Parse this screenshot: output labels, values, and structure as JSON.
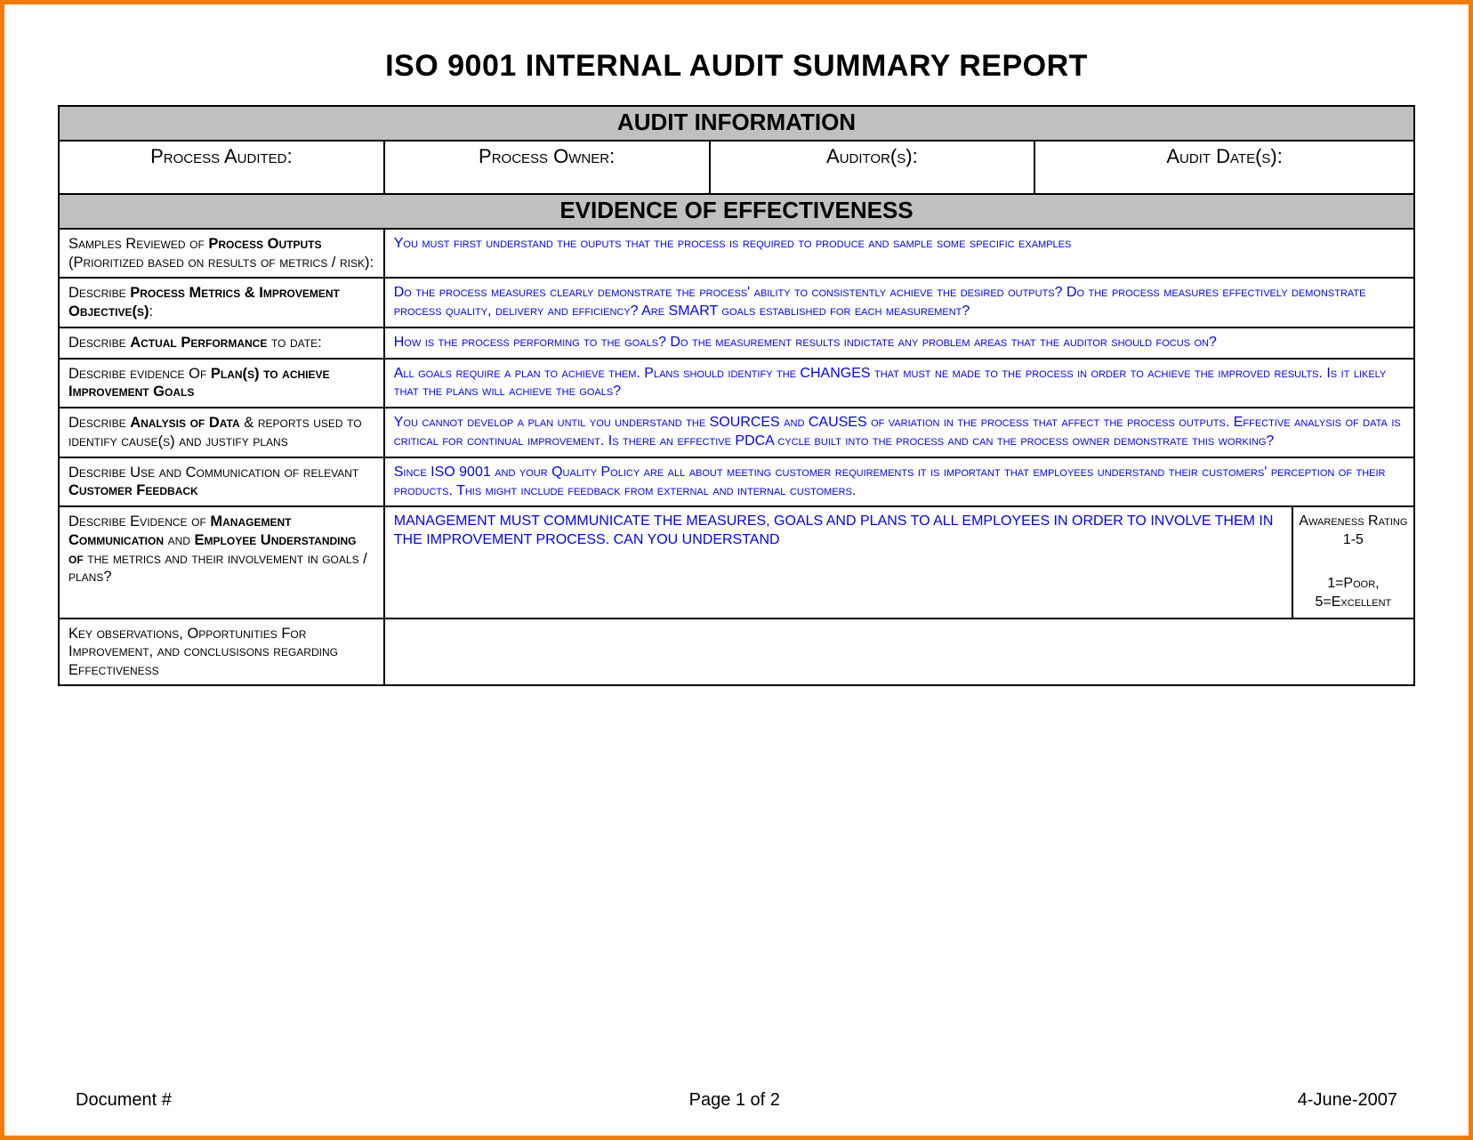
{
  "title": "ISO 9001 INTERNAL AUDIT SUMMARY REPORT",
  "sections": {
    "audit_info": {
      "header": "AUDIT INFORMATION",
      "cols": {
        "process_audited": "Process Audited:",
        "process_owner": "Process Owner:",
        "auditors": "Auditor(s):",
        "audit_dates": "Audit Date(s):"
      }
    },
    "evidence": {
      "header": "EVIDENCE OF EFFECTIVENESS",
      "rows": [
        {
          "label_html": "Samples Reviewed of <b>Process Outputs</b> (Prioritized based on results of metrics / risk):",
          "content": "You must first understand the ouputs that the process is required to produce and sample some specific examples"
        },
        {
          "label_html": "Describe <b>Process Metrics & Improvement Objective(s)</b>:",
          "content": "Do the process measures clearly demonstrate the process' ability to consistently achieve the desired outputs?  Do the process measures effectively demonstrate process quality, delivery and efficiency?  Are SMART goals established for each measurement?"
        },
        {
          "label_html": "Describe <b>Actual Performance</b> to date:",
          "content": "How is the process performing to the goals?  Do the measurement results indictate any problem areas that the auditor should focus on?"
        },
        {
          "label_html": "Describe evidence Of <b>Plan(s) to achieve Improvement Goals</b>",
          "content": "All goals require a plan to achieve them.  Plans should identify the CHANGES that must ne made to the process in order to achieve the improved results.  Is it likely that the plans will achieve the goals?"
        },
        {
          "label_html": "Describe <b>Analysis of Data</b> & reports used to identify cause(s) and justify plans",
          "content": "You cannot develop a plan until you understand the SOURCES and CAUSES of variation in the process that affect the process outputs.  Effective analysis of data is critical for continual improvement.  Is there an effective PDCA cycle built into the process and can the process owner demonstrate this working?"
        },
        {
          "label_html": "Describe Use and Communication of relevant <b>Customer Feedback</b>",
          "content": "Since ISO 9001 and your Quality Policy are all about meeting customer requirements it is important that employees understand their customers' perception of their products.  This might include feedback from external and internal customers."
        },
        {
          "label_html": "Describe Evidence of <b>Management Communication</b> and <b>Employee Understanding of</b> the metrics and their involvement in goals / plans?",
          "content": "MANAGEMENT MUST COMMUNICATE THE MEASURES, GOALS AND PLANS TO ALL EMPLOYEES IN ORDER TO INVOLVE THEM IN THE IMPROVEMENT PROCESS.  CAN YOU UNDERSTAND",
          "rating": {
            "top": "Awareness Rating 1-5",
            "bottom": "1=Poor, 5=Excellent"
          }
        },
        {
          "label_html": "Key observations, Opportunities For Improvement, and conclusisons regarding Effectiveness",
          "content": ""
        }
      ]
    }
  },
  "footer": {
    "left": "Document #",
    "center": "Page 1 of 2",
    "right": "4-June-2007"
  },
  "style": {
    "border_color": "#f57c00",
    "header_bg": "#c0c0c0",
    "blue_text": "#0000ff",
    "col_widths_pct": [
      24,
      24,
      24,
      19,
      9
    ]
  }
}
